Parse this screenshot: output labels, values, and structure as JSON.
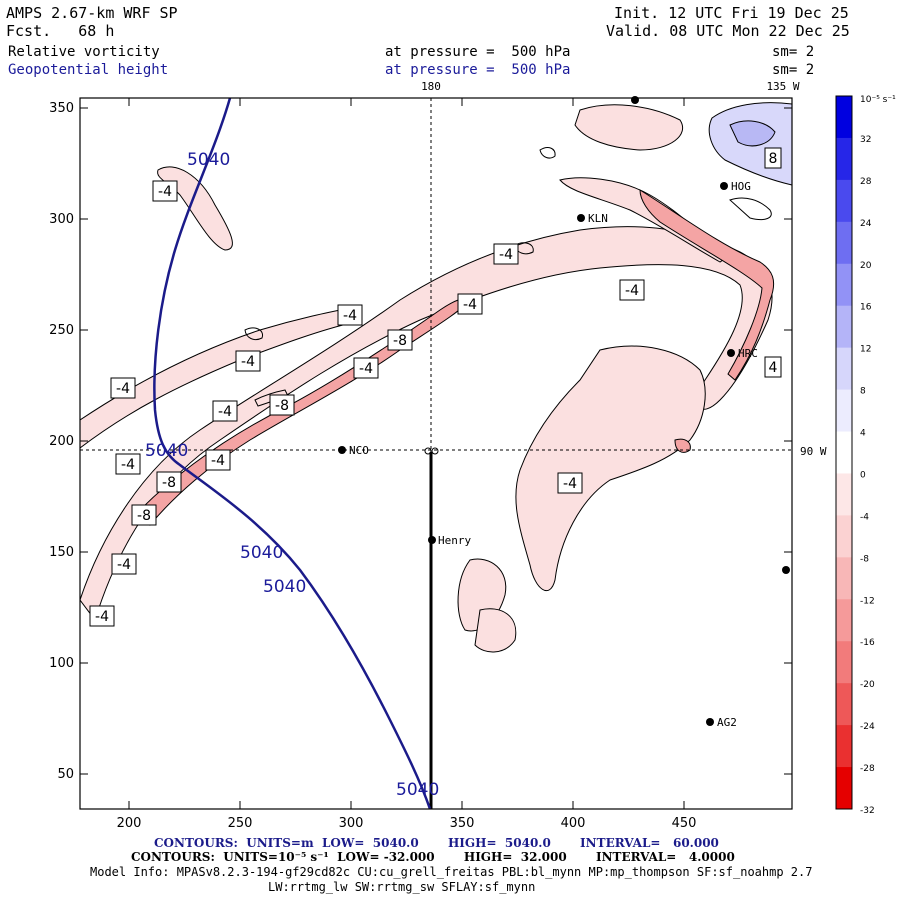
{
  "header": {
    "model": "AMPS 2.67-km WRF SP",
    "forecast": "Fcst.   68 h",
    "init": "Init. 12 UTC Fri 19 Dec 25",
    "valid": "Valid. 08 UTC Mon 22 Dec 25",
    "field1": "Relative vorticity",
    "field1_pressure": "at pressure =  500 hPa",
    "field1_sm": "sm= 2",
    "field2": "Geopotential height",
    "field2_pressure": "at pressure =  500 hPa",
    "field2_sm": "sm= 2"
  },
  "map": {
    "lon_label_180": "180",
    "lon_label_135w": "135 W",
    "lon_label_90w": "90 W",
    "x_ticks": [
      "200",
      "250",
      "300",
      "350",
      "400",
      "450"
    ],
    "y_ticks": [
      "350",
      "300",
      "250",
      "200",
      "150",
      "100",
      "50"
    ],
    "stations": [
      {
        "name": "KLN"
      },
      {
        "name": "HOG"
      },
      {
        "name": "HRC"
      },
      {
        "name": "NCO"
      },
      {
        "name": "Henry"
      },
      {
        "name": "AG2"
      }
    ],
    "height_labels": [
      "5040",
      "5040",
      "5040",
      "5040",
      "5040"
    ],
    "vort_labels": [
      "-4",
      "-4",
      "-4",
      "-4",
      "-4",
      "-4",
      "-4",
      "-4",
      "-4",
      "-4",
      "-4",
      "-4",
      "-4",
      "-4",
      "-8",
      "-8",
      "-8",
      "-8",
      "8",
      "4"
    ]
  },
  "colorbar": {
    "unit": "10⁻⁵ s⁻¹",
    "labels": [
      "32",
      "28",
      "24",
      "20",
      "16",
      "12",
      "8",
      "4",
      "0",
      "-4",
      "-8",
      "-12",
      "-16",
      "-20",
      "-24",
      "-28",
      "-32"
    ],
    "colors": [
      "#0000e0",
      "#2626e8",
      "#4a4aee",
      "#6e6ef2",
      "#9292f6",
      "#b4b4f8",
      "#d6d6fb",
      "#ececfe",
      "#ffffff",
      "#fde7e7",
      "#fbd2d2",
      "#f8b7b7",
      "#f59a9a",
      "#f27b7b",
      "#ee5858",
      "#ea3030",
      "#e50000"
    ]
  },
  "footer": {
    "line1": "CONTOURS:  UNITS=m  LOW=  5040.0       HIGH=  5040.0       INTERVAL=   60.000",
    "line2": "CONTOURS:  UNITS=10⁻⁵ s⁻¹  LOW= -32.000       HIGH=  32.000       INTERVAL=   4.0000",
    "line3": "Model Info: MPASv8.2.3-194-gf29cd82c CU:cu_grell_freitas PBL:bl_mynn MP:mp_thompson SF:sf_noahmp 2.7",
    "line4": "LW:rrtmg_lw SW:rrtmg_sw SFLAY:sf_mynn"
  }
}
